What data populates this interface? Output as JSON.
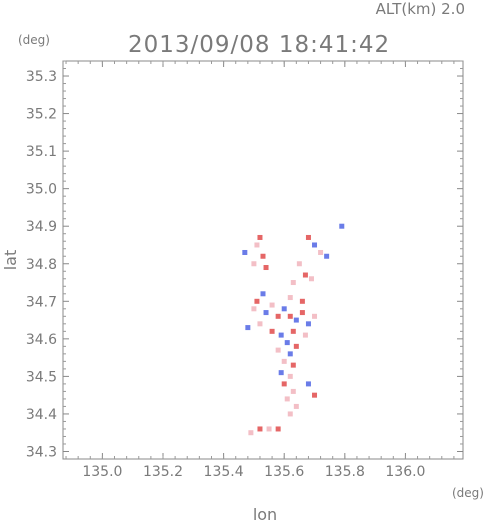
{
  "header": {
    "altitude_label": "ALT(km) 2.0",
    "timestamp": "2013/09/08 18:41:42"
  },
  "chart_data": {
    "type": "scatter",
    "title": "2013/09/08 18:41:42",
    "subtitle": "ALT(km) 2.0",
    "xlabel": "lon",
    "ylabel": "lat",
    "x_unit": "(deg)",
    "y_unit": "(deg)",
    "xlim": [
      134.87,
      136.19
    ],
    "ylim": [
      34.28,
      35.34
    ],
    "x_ticks": [
      "135.0",
      "135.2",
      "135.4",
      "135.6",
      "135.8",
      "136.0"
    ],
    "x_tick_values": [
      135.0,
      135.2,
      135.4,
      135.6,
      135.8,
      136.0
    ],
    "y_ticks": [
      "34.3",
      "34.4",
      "34.5",
      "34.6",
      "34.7",
      "34.8",
      "34.9",
      "35.0",
      "35.1",
      "35.2",
      "35.3"
    ],
    "y_tick_values": [
      34.3,
      34.4,
      34.5,
      34.6,
      34.7,
      34.8,
      34.9,
      35.0,
      35.1,
      35.2,
      35.3
    ],
    "grid": false,
    "colors": {
      "positive": "#e25555",
      "negative": "#5a6ee6",
      "weak_positive": "#f2b8c0"
    },
    "points": [
      {
        "lon": 135.52,
        "lat": 34.87,
        "c": "r"
      },
      {
        "lon": 135.51,
        "lat": 34.85,
        "c": "p"
      },
      {
        "lon": 135.53,
        "lat": 34.82,
        "c": "r"
      },
      {
        "lon": 135.5,
        "lat": 34.8,
        "c": "p"
      },
      {
        "lon": 135.47,
        "lat": 34.83,
        "c": "b"
      },
      {
        "lon": 135.54,
        "lat": 34.79,
        "c": "r"
      },
      {
        "lon": 135.68,
        "lat": 34.87,
        "c": "r"
      },
      {
        "lon": 135.7,
        "lat": 34.85,
        "c": "b"
      },
      {
        "lon": 135.72,
        "lat": 34.83,
        "c": "p"
      },
      {
        "lon": 135.74,
        "lat": 34.82,
        "c": "b"
      },
      {
        "lon": 135.65,
        "lat": 34.8,
        "c": "p"
      },
      {
        "lon": 135.67,
        "lat": 34.77,
        "c": "r"
      },
      {
        "lon": 135.69,
        "lat": 34.76,
        "c": "p"
      },
      {
        "lon": 135.63,
        "lat": 34.75,
        "c": "p"
      },
      {
        "lon": 135.79,
        "lat": 34.9,
        "c": "b"
      },
      {
        "lon": 135.53,
        "lat": 34.72,
        "c": "b"
      },
      {
        "lon": 135.51,
        "lat": 34.7,
        "c": "r"
      },
      {
        "lon": 135.5,
        "lat": 34.68,
        "c": "p"
      },
      {
        "lon": 135.54,
        "lat": 34.67,
        "c": "b"
      },
      {
        "lon": 135.56,
        "lat": 34.69,
        "c": "p"
      },
      {
        "lon": 135.58,
        "lat": 34.66,
        "c": "r"
      },
      {
        "lon": 135.6,
        "lat": 34.68,
        "c": "b"
      },
      {
        "lon": 135.62,
        "lat": 34.66,
        "c": "r"
      },
      {
        "lon": 135.64,
        "lat": 34.65,
        "c": "b"
      },
      {
        "lon": 135.66,
        "lat": 34.67,
        "c": "r"
      },
      {
        "lon": 135.68,
        "lat": 34.64,
        "c": "b"
      },
      {
        "lon": 135.7,
        "lat": 34.66,
        "c": "p"
      },
      {
        "lon": 135.66,
        "lat": 34.7,
        "c": "r"
      },
      {
        "lon": 135.62,
        "lat": 34.71,
        "c": "p"
      },
      {
        "lon": 135.52,
        "lat": 34.64,
        "c": "p"
      },
      {
        "lon": 135.48,
        "lat": 34.63,
        "c": "b"
      },
      {
        "lon": 135.56,
        "lat": 34.62,
        "c": "r"
      },
      {
        "lon": 135.59,
        "lat": 34.61,
        "c": "b"
      },
      {
        "lon": 135.63,
        "lat": 34.62,
        "c": "r"
      },
      {
        "lon": 135.67,
        "lat": 34.61,
        "c": "p"
      },
      {
        "lon": 135.61,
        "lat": 34.59,
        "c": "b"
      },
      {
        "lon": 135.64,
        "lat": 34.58,
        "c": "r"
      },
      {
        "lon": 135.58,
        "lat": 34.57,
        "c": "p"
      },
      {
        "lon": 135.62,
        "lat": 34.56,
        "c": "b"
      },
      {
        "lon": 135.6,
        "lat": 34.54,
        "c": "p"
      },
      {
        "lon": 135.63,
        "lat": 34.53,
        "c": "r"
      },
      {
        "lon": 135.59,
        "lat": 34.51,
        "c": "b"
      },
      {
        "lon": 135.62,
        "lat": 34.5,
        "c": "p"
      },
      {
        "lon": 135.6,
        "lat": 34.48,
        "c": "r"
      },
      {
        "lon": 135.68,
        "lat": 34.48,
        "c": "b"
      },
      {
        "lon": 135.7,
        "lat": 34.45,
        "c": "r"
      },
      {
        "lon": 135.63,
        "lat": 34.46,
        "c": "p"
      },
      {
        "lon": 135.61,
        "lat": 34.44,
        "c": "p"
      },
      {
        "lon": 135.64,
        "lat": 34.42,
        "c": "p"
      },
      {
        "lon": 135.62,
        "lat": 34.4,
        "c": "p"
      },
      {
        "lon": 135.49,
        "lat": 34.35,
        "c": "p"
      },
      {
        "lon": 135.52,
        "lat": 34.36,
        "c": "r"
      },
      {
        "lon": 135.55,
        "lat": 34.36,
        "c": "p"
      },
      {
        "lon": 135.58,
        "lat": 34.36,
        "c": "r"
      }
    ]
  }
}
